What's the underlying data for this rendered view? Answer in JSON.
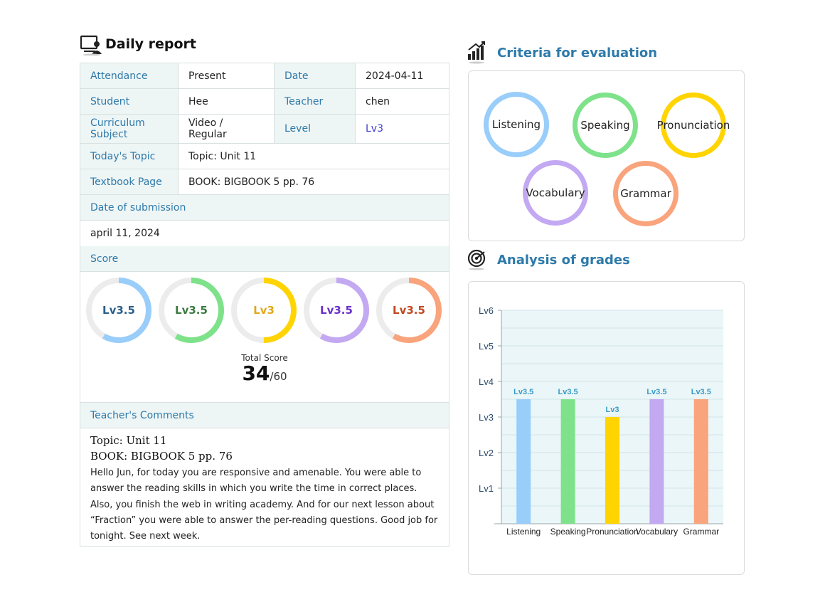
{
  "header": {
    "title": "Daily report"
  },
  "info": {
    "attendance_label": "Attendance",
    "attendance": "Present",
    "date_label": "Date",
    "date": "2024-04-11",
    "student_label": "Student",
    "student": "Hee",
    "teacher_label": "Teacher",
    "teacher": "chen",
    "curriculum_label": "Curriculum Subject",
    "curriculum": "Video / Regular",
    "level_label": "Level",
    "level": "Lv3",
    "topic_label": "Today's Topic",
    "topic": "Topic: Unit 11",
    "textbook_label": "Textbook Page",
    "textbook": "BOOK: BIGBOOK 5 pp. 76"
  },
  "submission": {
    "label": "Date of submission",
    "value": "april 11, 2024"
  },
  "score": {
    "label": "Score",
    "donuts": [
      {
        "label": "Lv3.5",
        "value": 3.5,
        "color": "#99cdfa",
        "text_color": "#2c5f8a"
      },
      {
        "label": "Lv3.5",
        "value": 3.5,
        "color": "#7ee28a",
        "text_color": "#3b7a3f"
      },
      {
        "label": "Lv3",
        "value": 3,
        "color": "#ffd400",
        "text_color": "#e2a81a"
      },
      {
        "label": "Lv3.5",
        "value": 3.5,
        "color": "#c3a8f2",
        "text_color": "#6a2fc8"
      },
      {
        "label": "Lv3.5",
        "value": 3.5,
        "color": "#f9a47c",
        "text_color": "#c2481f"
      }
    ],
    "total_label": "Total Score",
    "total_value": "34",
    "total_max": "/60"
  },
  "comments": {
    "label": "Teacher's Comments",
    "line1": "Topic: Unit 11",
    "line2": "BOOK: BIGBOOK 5 pp. 76",
    "text": "Hello Jun, for today you are responsive and amenable. You were able to answer the reading skills in which you write the time in correct places. Also, you finish the web in writing academy. And for our next lesson about “Fraction” you were able to answer the per-reading questions. Good job for tonight. See next week."
  },
  "criteria": {
    "title": "Criteria for evaluation",
    "items": [
      {
        "label": "Listening",
        "color": "#99cdfa"
      },
      {
        "label": "Speaking",
        "color": "#7ee28a"
      },
      {
        "label": "Pronunciation",
        "color": "#ffd400"
      },
      {
        "label": "Vocabulary",
        "color": "#c3a8f2"
      },
      {
        "label": "Grammar",
        "color": "#f9a47c"
      }
    ]
  },
  "analysis": {
    "title": "Analysis of grades"
  },
  "chart_data": {
    "type": "bar",
    "categories": [
      "Listening",
      "Speaking",
      "Pronunciation",
      "Vocabulary",
      "Grammar"
    ],
    "values": [
      3.5,
      3.5,
      3,
      3.5,
      3.5
    ],
    "data_labels": [
      "Lv3.5",
      "Lv3.5",
      "Lv3",
      "Lv3.5",
      "Lv3.5"
    ],
    "colors": [
      "#99cdfa",
      "#7ee28a",
      "#ffd400",
      "#c3a8f2",
      "#f9a47c"
    ],
    "ylim": [
      0,
      6
    ],
    "yticks": [
      1,
      2,
      3,
      4,
      5,
      6
    ],
    "ytick_labels": [
      "Lv1",
      "Lv2",
      "Lv3",
      "Lv4",
      "Lv5",
      "Lv6"
    ],
    "grid": true,
    "title": "",
    "xlabel": "",
    "ylabel": ""
  }
}
